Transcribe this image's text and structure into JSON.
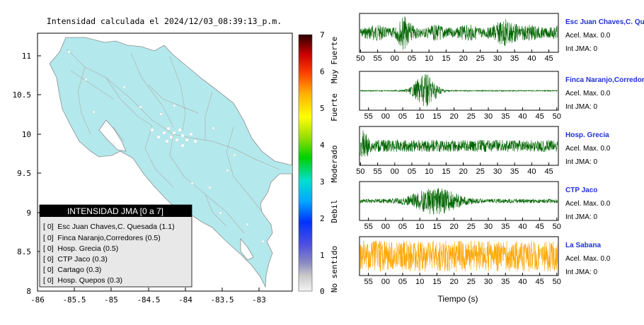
{
  "map": {
    "title": "Intensidad calculada el 2024/12/03_08:39:13_p.m.",
    "x_ticks": [
      "-86",
      "-85.5",
      "-85",
      "-84.5",
      "-84",
      "-83.5",
      "-83"
    ],
    "y_ticks": [
      "11",
      "10.5",
      "10",
      "9.5",
      "9",
      "8.5",
      "8"
    ],
    "land_color": "#b3e9ec",
    "legend": {
      "title": "INTENSIDAD JMA [0 a 7]",
      "entries": [
        "[ 0]  Esc Juan Chaves,C. Quesada (1.1)",
        "[ 0]  Finca Naranjo,Corredores (0.5)",
        "[ 0]  Hosp. Grecia (0.5)",
        "[ 0]  CTP Jaco (0.3)",
        "[ 0]  Cartago (0.3)",
        "[ 0]  Hosp. Quepos (0.3)"
      ]
    }
  },
  "colorbar": {
    "ticks": [
      "0",
      "1",
      "2",
      "3",
      "4",
      "5",
      "6",
      "7"
    ],
    "labels": [
      "No sentido",
      "Debil",
      "Moderado",
      "Fuerte",
      "Muy Fuerte"
    ]
  },
  "traces": {
    "xlabel": "Tiempo (s)",
    "panels": [
      {
        "station": "Esc Juan Chaves,C. Qu",
        "acel": "Acel. Max. 0.0",
        "int": "Int JMA: 0",
        "color": "#006400",
        "ticks": [
          "50",
          "55",
          "00",
          "05",
          "10",
          "15",
          "20",
          "25",
          "30",
          "35",
          "40",
          "45"
        ]
      },
      {
        "station": "Finca Naranjo,Corredores",
        "acel": "Acel. Max. 0.0",
        "int": "Int JMA: 0",
        "color": "#006400",
        "ticks": [
          "55",
          "00",
          "05",
          "10",
          "15",
          "20",
          "25",
          "30",
          "35",
          "40",
          "45",
          "50"
        ]
      },
      {
        "station": "Hosp. Grecia",
        "acel": "Acel. Max. 0.0",
        "int": "Int JMA: 0",
        "color": "#006400",
        "ticks": [
          "50",
          "55",
          "00",
          "05",
          "10",
          "15",
          "20",
          "25",
          "30",
          "35",
          "40",
          "45"
        ]
      },
      {
        "station": "CTP Jaco",
        "acel": "Acel. Max. 0.0",
        "int": "Int JMA: 0",
        "color": "#006400",
        "ticks": [
          "55",
          "00",
          "05",
          "10",
          "15",
          "20",
          "25",
          "30",
          "35",
          "40",
          "45",
          "50"
        ]
      },
      {
        "station": "La Sabana",
        "acel": "Acel. Max. 0.0",
        "int": "Int JMA: 0",
        "color": "#ffa500",
        "ticks": [
          "55",
          "00",
          "05",
          "10",
          "15",
          "20",
          "25",
          "30",
          "35",
          "40",
          "45",
          "50"
        ]
      }
    ]
  },
  "chart_data": [
    {
      "type": "heatmap",
      "title": "Intensidad calculada el 2024/12/03_08:39:13_p.m.",
      "xlim": [
        -86,
        -82.6
      ],
      "ylim": [
        8,
        11.3
      ],
      "colorbar_range": [
        0,
        7
      ],
      "stations": [
        {
          "name": "Esc Juan Chaves,C. Quesada",
          "intensity": 1.1
        },
        {
          "name": "Finca Naranjo,Corredores",
          "intensity": 0.5
        },
        {
          "name": "Hosp. Grecia",
          "intensity": 0.5
        },
        {
          "name": "CTP Jaco",
          "intensity": 0.3
        },
        {
          "name": "Cartago",
          "intensity": 0.3
        },
        {
          "name": "Hosp. Quepos",
          "intensity": 0.3
        }
      ]
    },
    {
      "type": "line",
      "xlabel": "Tiempo (s)",
      "series": [
        {
          "name": "Esc Juan Chaves,C. Qu",
          "acel_max": 0.0,
          "int_jma": 0
        },
        {
          "name": "Finca Naranjo,Corredores",
          "acel_max": 0.0,
          "int_jma": 0
        },
        {
          "name": "Hosp. Grecia",
          "acel_max": 0.0,
          "int_jma": 0
        },
        {
          "name": "CTP Jaco",
          "acel_max": 0.0,
          "int_jma": 0
        },
        {
          "name": "La Sabana",
          "acel_max": 0.0,
          "int_jma": 0
        }
      ]
    }
  ]
}
